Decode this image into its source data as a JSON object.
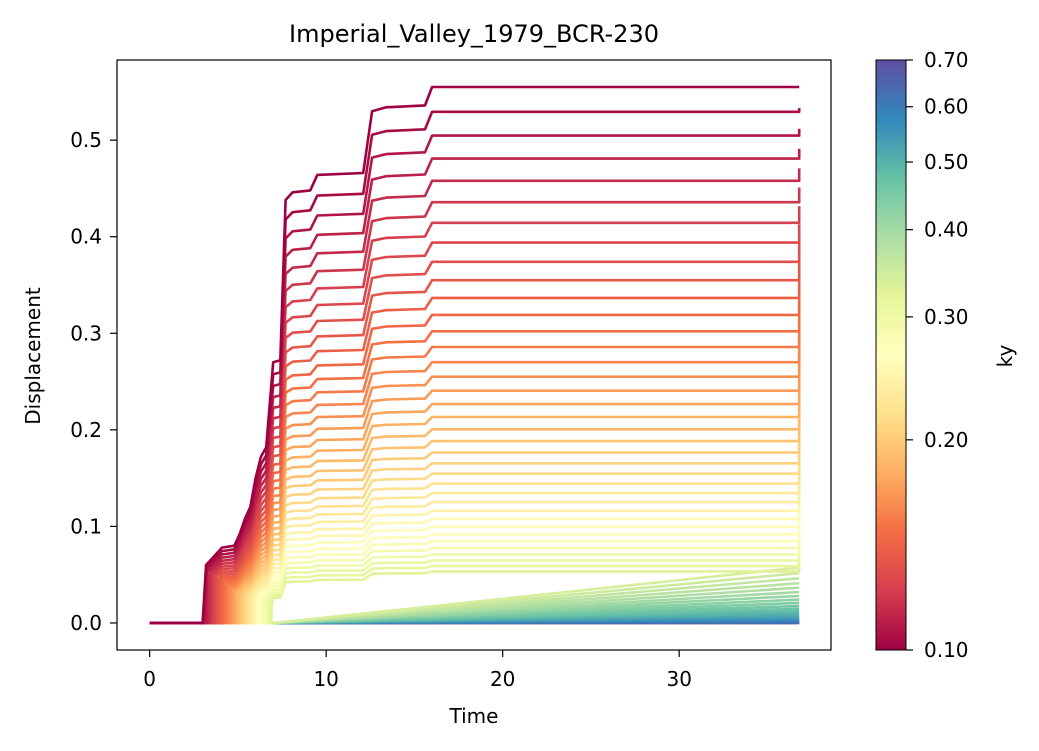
{
  "chart_data": {
    "type": "line",
    "title": "Imperial_Valley_1979_BCR-230",
    "xlabel": "Time",
    "ylabel": "Displacement",
    "xlim": [
      -1.85,
      38.6
    ],
    "ylim": [
      -0.028,
      0.583
    ],
    "xticks": [
      0,
      10,
      20,
      30
    ],
    "xtick_labels": [
      "0",
      "10",
      "20",
      "30"
    ],
    "yticks": [
      0.0,
      0.1,
      0.2,
      0.3,
      0.4,
      0.5
    ],
    "ytick_labels": [
      "0.0",
      "0.1",
      "0.2",
      "0.3",
      "0.4",
      "0.5"
    ],
    "grid": false,
    "legend": "none",
    "colorbar": {
      "label": "ky",
      "colormap": "Spectral",
      "scale": "log",
      "range": [
        0.1,
        0.7
      ],
      "ticks": [
        0.1,
        0.2,
        0.3,
        0.4,
        0.5,
        0.6,
        0.7
      ],
      "tick_labels": [
        "0.10",
        "0.20",
        "0.30",
        "0.40",
        "0.50",
        "0.60",
        "0.70"
      ]
    },
    "series_summary": {
      "count": 60,
      "ky_range": [
        0.1,
        0.7
      ],
      "t_end": 36.8,
      "final_displacement_at_ky_0_10": 0.555,
      "final_displacement_at_ky_0_70": 0.0
    }
  }
}
